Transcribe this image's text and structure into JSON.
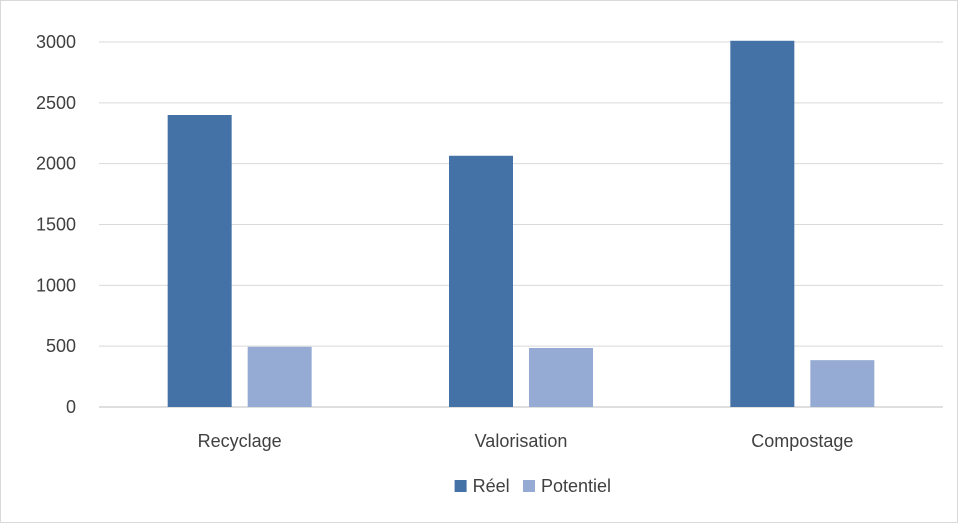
{
  "chart_data": {
    "type": "bar",
    "categories": [
      "Recyclage",
      "Valorisation",
      "Compostage"
    ],
    "series": [
      {
        "name": "Réel",
        "values": [
          2400,
          2065,
          3010
        ],
        "color": "#4472a7"
      },
      {
        "name": "Potentiel",
        "values": [
          495,
          485,
          385
        ],
        "color": "#95abd3"
      }
    ],
    "ylim": [
      0,
      3000
    ],
    "yticks": [
      0,
      500,
      1000,
      1500,
      2000,
      2500,
      3000
    ],
    "grid": true,
    "legend_position": "bottom",
    "title": "",
    "xlabel": "",
    "ylabel": ""
  }
}
